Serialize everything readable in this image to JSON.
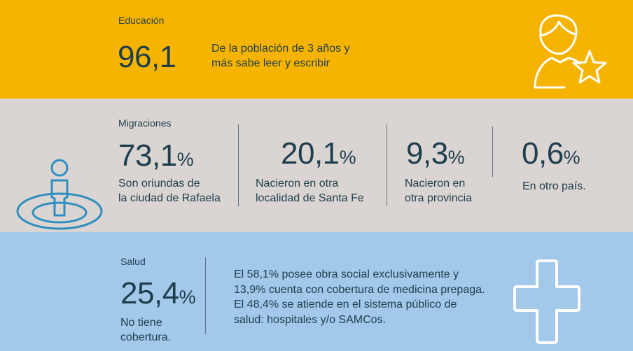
{
  "educacion": {
    "label": "Educación",
    "value": "96,1",
    "description_line1": "De la población de 3 años y",
    "description_line2": "más sabe leer y escribir",
    "icon": "student-star-icon"
  },
  "migraciones": {
    "label": "Migraciones",
    "icon": "person-location-icon",
    "stats": [
      {
        "value": "73,1",
        "unit": "%",
        "line1": "Son oriundas de",
        "line2": "la ciudad de Rafaela"
      },
      {
        "value": "20,1",
        "unit": "%",
        "line1": "Nacieron en otra",
        "line2": "localidad de Santa Fe"
      },
      {
        "value": "9,3",
        "unit": "%",
        "line1": "Nacieron en",
        "line2": "otra provincia"
      },
      {
        "value": "0,6",
        "unit": "%",
        "line1": "En otro país.",
        "line2": ""
      }
    ]
  },
  "salud": {
    "label": "Salud",
    "value": "25,4",
    "unit": "%",
    "caption_line1": "No tiene",
    "caption_line2": "cobertura.",
    "text_line1": "El 58,1% posee obra social exclusivamente y",
    "text_line2": "13,9% cuenta con cobertura de medicina prepaga.",
    "text_line3": "El 48,4% se atiende en el sistema público de",
    "text_line4": "salud: hospitales y/o SAMCos.",
    "icon": "health-cross-icon"
  }
}
